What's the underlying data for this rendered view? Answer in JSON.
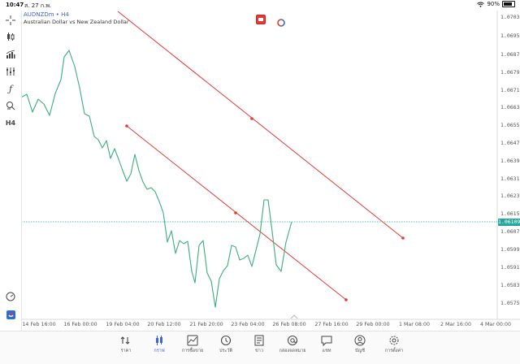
{
  "status": {
    "time": "10:47",
    "date": "ส. 27 ก.พ.",
    "battery": "90%"
  },
  "chart": {
    "symbol": "AUDNZDm • H4",
    "description": "Australian Dollar vs New Zealand Dollar",
    "current_price": "1.06109",
    "price_labels": [
      "1.07030",
      "1.06950",
      "1.06870",
      "1.06790",
      "1.06710",
      "1.06630",
      "1.06550",
      "1.06470",
      "1.06390",
      "1.06310",
      "1.06230",
      "1.06150",
      "1.06070",
      "1.05990",
      "1.05910",
      "1.05830",
      "1.05750"
    ],
    "time_labels": [
      "14 Feb 16:00",
      "16 Feb 00:00",
      "19 Feb 04:00",
      "20 Feb 12:00",
      "21 Feb 20:00",
      "23 Feb 04:00",
      "26 Feb 08:00",
      "27 Feb 16:00",
      "29 Feb 00:00",
      "1 Mar 08:00",
      "2 Mar 16:00",
      "4 Mar 00:00"
    ],
    "colors": {
      "series": "#3aaf7e",
      "trendline": "#e53935",
      "current": "#26a69a",
      "accent": "#3d63d8"
    }
  },
  "toolbar": {
    "items": [
      "crosshair-icon",
      "candle-type-icon",
      "indicators-icon",
      "objects-icon",
      "function-icon",
      "draw-icon",
      "timeframe"
    ],
    "timeframe_label": "H4"
  },
  "nav": {
    "items": [
      {
        "label": "ราคา",
        "icon": "quotes-icon"
      },
      {
        "label": "กราฟ",
        "icon": "chart-icon"
      },
      {
        "label": "การซื้อขาย",
        "icon": "trade-icon"
      },
      {
        "label": "ประวัติ",
        "icon": "history-icon"
      },
      {
        "label": "ข่าว",
        "icon": "news-icon"
      },
      {
        "label": "กล่องจดหมาย",
        "icon": "mailbox-icon"
      },
      {
        "label": "แชท",
        "icon": "chat-icon"
      },
      {
        "label": "บัญชี",
        "icon": "account-icon"
      },
      {
        "label": "การตั้งค่า",
        "icon": "settings-icon"
      }
    ]
  }
}
